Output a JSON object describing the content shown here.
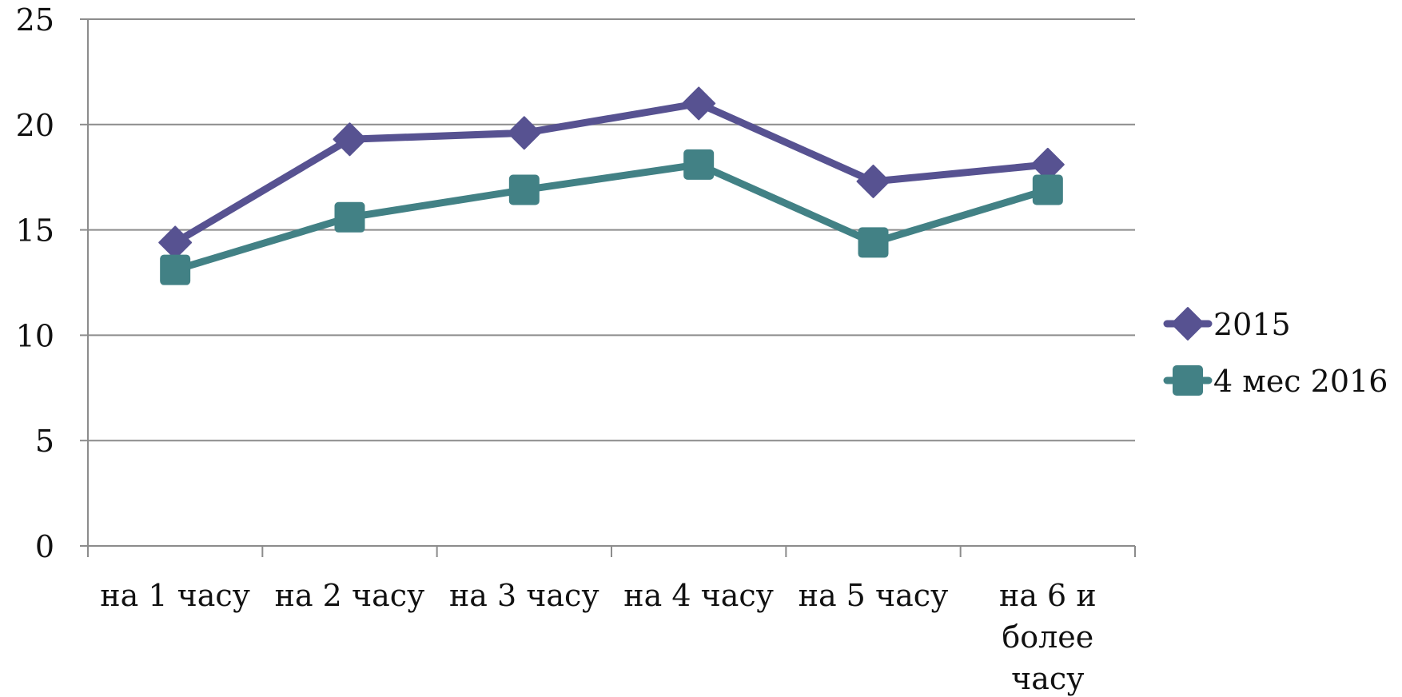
{
  "chart_data": {
    "type": "line",
    "categories": [
      [
        "на 1 часу"
      ],
      [
        "на 2 часу"
      ],
      [
        "на 3 часу"
      ],
      [
        "на 4 часу"
      ],
      [
        "на 5 часу"
      ],
      [
        "на 6 и",
        "более",
        "часу"
      ]
    ],
    "series": [
      {
        "name": "2015",
        "values": [
          14.4,
          19.3,
          19.6,
          21.0,
          17.3,
          18.1
        ],
        "color": "#575291",
        "marker": "diamond"
      },
      {
        "name": "4 мес 2016",
        "values": [
          13.1,
          15.6,
          16.9,
          18.1,
          14.4,
          16.9
        ],
        "color": "#428185",
        "marker": "square"
      }
    ],
    "yticks": [
      0,
      5,
      10,
      15,
      20,
      25
    ],
    "ylim": [
      0,
      25
    ],
    "grid": "horizontal",
    "legend": "right",
    "title": "",
    "xlabel": "",
    "ylabel": ""
  }
}
